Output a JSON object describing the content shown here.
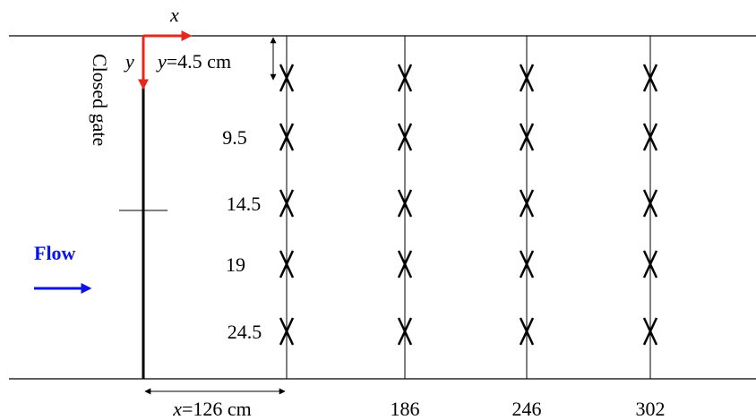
{
  "axes": {
    "x": "x",
    "y": "y"
  },
  "gate_label": "Closed gate",
  "flow_label": "Flow",
  "y_positions": {
    "first": {
      "var": "y",
      "rest": "=4.5 cm"
    },
    "others": [
      "9.5",
      "14.5",
      "19",
      "24.5"
    ]
  },
  "x_positions": {
    "first": {
      "var": "x",
      "rest": "=126 cm"
    },
    "others": [
      "186",
      "246",
      "302"
    ]
  }
}
